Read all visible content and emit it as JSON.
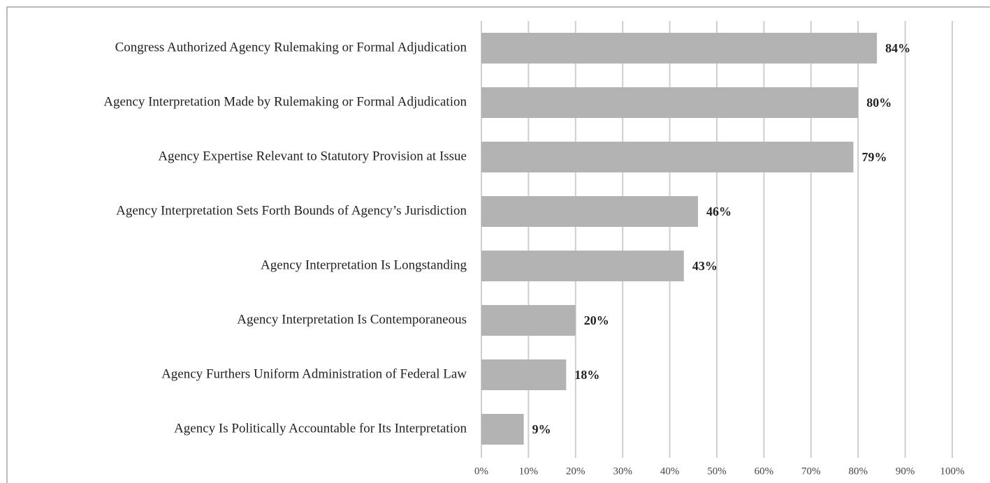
{
  "chart_data": {
    "type": "barh",
    "categories": [
      "Congress Authorized Agency Rulemaking or Formal Adjudication",
      "Agency Interpretation Made by Rulemaking or Formal Adjudication",
      "Agency Expertise Relevant to Statutory Provision at Issue",
      "Agency Interpretation Sets Forth Bounds of Agency’s Jurisdiction",
      "Agency Interpretation Is Longstanding",
      "Agency Interpretation Is Contemporaneous",
      "Agency Furthers Uniform Administration of Federal Law",
      "Agency Is Politically Accountable for Its Interpretation"
    ],
    "values": [
      84,
      80,
      79,
      46,
      43,
      20,
      18,
      9
    ],
    "value_labels": [
      "84%",
      "80%",
      "79%",
      "46%",
      "43%",
      "20%",
      "18%",
      "9%"
    ],
    "color": "#b3b3b3",
    "xlim": [
      0,
      100
    ],
    "xticks": [
      {
        "value": 0,
        "label": "0%"
      },
      {
        "value": 10,
        "label": "10%"
      },
      {
        "value": 20,
        "label": "20%"
      },
      {
        "value": 30,
        "label": "30%"
      },
      {
        "value": 40,
        "label": "40%"
      },
      {
        "value": 50,
        "label": "50%"
      },
      {
        "value": 60,
        "label": "60%"
      },
      {
        "value": 70,
        "label": "70%"
      },
      {
        "value": 80,
        "label": "80%"
      },
      {
        "value": 90,
        "label": "90%"
      },
      {
        "value": 100,
        "label": "100%"
      }
    ],
    "grid": true
  }
}
